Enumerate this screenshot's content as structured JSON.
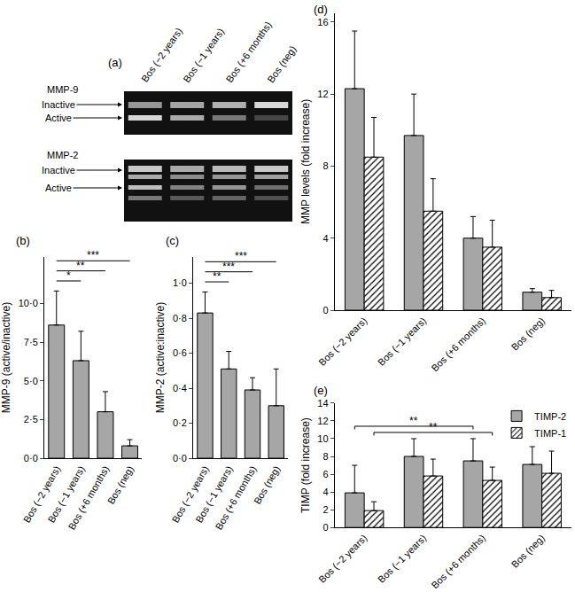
{
  "chart_data": [
    {
      "type": "gel",
      "title": "(a)",
      "lanes": [
        "Bos (−2 years)",
        "Bos (−1 years)",
        "Bos (+6 months)",
        "Bos (neg)"
      ],
      "blots": [
        {
          "name": "MMP-9",
          "bands": [
            "Inactive",
            "Active"
          ]
        },
        {
          "name": "MMP-2",
          "bands": [
            "Inactive",
            "Active"
          ]
        }
      ]
    },
    {
      "type": "bar",
      "title": "(b)",
      "y_label": "MMP-9 (active/inactive)",
      "categories": [
        "Bos (−2 years)",
        "Bos (−1 years)",
        "Bos (+6 months)",
        "Bos (neg)"
      ],
      "values": [
        8.6,
        6.3,
        3.0,
        0.8
      ],
      "errors": [
        2.2,
        1.9,
        1.3,
        0.4
      ],
      "color": "#a6a6a6",
      "marker": "solid",
      "ylim": [
        0,
        13
      ],
      "yticks": [
        {
          "value": 0,
          "label": "0·0"
        },
        {
          "value": 2.5,
          "label": "2·5"
        },
        {
          "value": 5,
          "label": "5·0"
        },
        {
          "value": 7.5,
          "label": "7·5"
        },
        {
          "value": 10,
          "label": "10·0"
        }
      ],
      "grid": false,
      "annotations": [
        {
          "text": "*",
          "from": 0,
          "to": 1
        },
        {
          "text": "**",
          "from": 0,
          "to": 2
        },
        {
          "text": "***",
          "from": 0,
          "to": 3
        }
      ]
    },
    {
      "type": "bar",
      "title": "(c)",
      "y_label": "MMP-2 (active:inactive)",
      "categories": [
        "Bos (−2 years)",
        "Bos (−1 years)",
        "Bos (+6 months)",
        "Bos (neg)"
      ],
      "values": [
        0.83,
        0.51,
        0.39,
        0.3
      ],
      "errors": [
        0.12,
        0.1,
        0.07,
        0.21
      ],
      "color": "#a6a6a6",
      "marker": "solid",
      "ylim": [
        0,
        1.15
      ],
      "yticks": [
        {
          "value": 0,
          "label": "0·0"
        },
        {
          "value": 0.2,
          "label": "0·2"
        },
        {
          "value": 0.4,
          "label": "0·4"
        },
        {
          "value": 0.6,
          "label": "0·6"
        },
        {
          "value": 0.8,
          "label": "0·8"
        },
        {
          "value": 1,
          "label": "1·0"
        }
      ],
      "grid": false,
      "annotations": [
        {
          "text": "**",
          "from": 0,
          "to": 1
        },
        {
          "text": "***",
          "from": 0,
          "to": 2
        },
        {
          "text": "***",
          "from": 0,
          "to": 3
        }
      ]
    },
    {
      "type": "bar",
      "title": "(d)",
      "y_label": "MMP levels (fold increase)",
      "categories": [
        "Bos (−2 years)",
        "Bos (−1 years)",
        "Bos (+6 months)",
        "Bos (neg)"
      ],
      "series": [
        {
          "color": "#a6a6a6",
          "marker": "solid",
          "values": [
            12.3,
            9.7,
            4.0,
            1.0
          ],
          "errors": [
            3.2,
            2.3,
            1.2,
            0.2
          ]
        },
        {
          "color": "#000000",
          "marker": "hatch",
          "values": [
            8.5,
            5.5,
            3.5,
            0.7
          ],
          "errors": [
            2.2,
            1.8,
            1.5,
            0.4
          ]
        }
      ],
      "ylim": [
        0,
        16.5
      ],
      "yticks": [
        0,
        4,
        8,
        12,
        16
      ],
      "grid": false
    },
    {
      "type": "bar",
      "title": "(e)",
      "y_label": "TIMP (fold increase)",
      "categories": [
        "Bos (−2 years)",
        "Bos (−1 years)",
        "Bos (+6 months)",
        "Bos (neg)"
      ],
      "series": [
        {
          "name": "TIMP-2",
          "color": "#a6a6a6",
          "marker": "solid",
          "values": [
            3.9,
            8.0,
            7.5,
            7.1
          ],
          "errors": [
            3.1,
            2.0,
            2.5,
            2.0
          ]
        },
        {
          "name": "TIMP-1",
          "color": "#000000",
          "marker": "hatch",
          "values": [
            1.9,
            5.8,
            5.3,
            6.1
          ],
          "errors": [
            1.0,
            1.9,
            1.5,
            2.5
          ]
        }
      ],
      "ylim": [
        0,
        14
      ],
      "yticks": [
        0,
        2,
        4,
        6,
        8,
        10,
        12,
        14
      ],
      "grid": false,
      "legend": "top right",
      "annotations": [
        {
          "text": "**",
          "series": 1,
          "from": 0,
          "to": 2
        },
        {
          "text": "**",
          "series": 0,
          "from": 0,
          "to": 2
        }
      ]
    }
  ]
}
